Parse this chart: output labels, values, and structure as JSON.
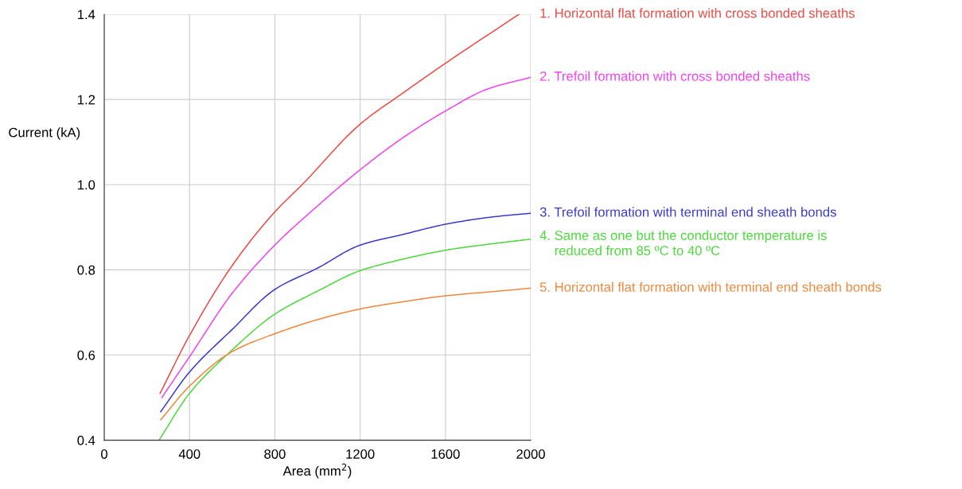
{
  "chart_data": {
    "type": "line",
    "xlabel": "Area (mm$^{2}$)",
    "ylabel": "Current (kA)",
    "xlim": [
      0,
      2000
    ],
    "ylim": [
      0.4,
      1.4
    ],
    "xticks": [
      0,
      400,
      800,
      1200,
      1600,
      2000
    ],
    "yticks": [
      {
        "value": 0.4,
        "label": "0.4"
      },
      {
        "value": 0.6,
        "label": "0.6"
      },
      {
        "value": 0.8,
        "label": "0.8"
      },
      {
        "value": 1.0,
        "label": "1.0"
      },
      {
        "value": 1.2,
        "label": "1.2"
      },
      {
        "value": 1.4,
        "label": "1.4"
      }
    ],
    "grid": true,
    "legend": false,
    "marker": "none",
    "line_style": "solid",
    "series": [
      {
        "name": "1. Horizontal flat formation with cross bonded sheaths",
        "color": "#ec4a44",
        "x": [
          262,
          400,
          600,
          800,
          928,
          1200,
          1400,
          1600,
          1945
        ],
        "values": [
          0.51,
          0.646,
          0.81,
          0.936,
          1.0,
          1.142,
          1.215,
          1.285,
          1.4
        ]
      },
      {
        "name": "2. Trefoil formation with cross bonded sheaths",
        "color": "#ee44ee",
        "x": [
          270,
          400,
          600,
          800,
          1000,
          1200,
          1400,
          1600,
          1800,
          2000
        ],
        "values": [
          0.5,
          0.596,
          0.745,
          0.858,
          0.95,
          1.035,
          1.11,
          1.173,
          1.225,
          1.252
        ]
      },
      {
        "name": "3. Trefoil formation with terminal end sheath bonds",
        "color": "#3a3acc",
        "x": [
          265,
          400,
          600,
          800,
          1000,
          1200,
          1400,
          1600,
          1800,
          2000
        ],
        "values": [
          0.467,
          0.56,
          0.66,
          0.754,
          0.804,
          0.858,
          0.883,
          0.907,
          0.923,
          0.933
        ]
      },
      {
        "name": "4. Same as one but the conductor temperature is\n    reduced from 85 ºC to 40 ºC",
        "color": "#4cd83c",
        "x": [
          257,
          400,
          600,
          800,
          1000,
          1200,
          1400,
          1600,
          1800,
          2000
        ],
        "values": [
          0.4,
          0.51,
          0.612,
          0.696,
          0.75,
          0.798,
          0.825,
          0.846,
          0.86,
          0.872
        ]
      },
      {
        "name": "5. Horizontal flat formation with terminal end sheath bonds",
        "color": "#f0873c",
        "x": [
          265,
          400,
          600,
          800,
          1000,
          1200,
          1400,
          1600,
          1800,
          2000
        ],
        "values": [
          0.448,
          0.527,
          0.608,
          0.65,
          0.683,
          0.708,
          0.725,
          0.739,
          0.748,
          0.757
        ]
      }
    ]
  }
}
